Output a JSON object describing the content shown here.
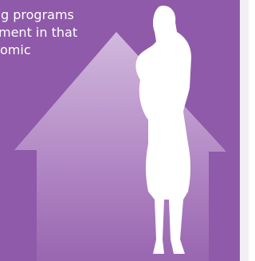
{
  "text": {
    "lines": [
      "g programs",
      "ment in that",
      "omic"
    ]
  }
}
